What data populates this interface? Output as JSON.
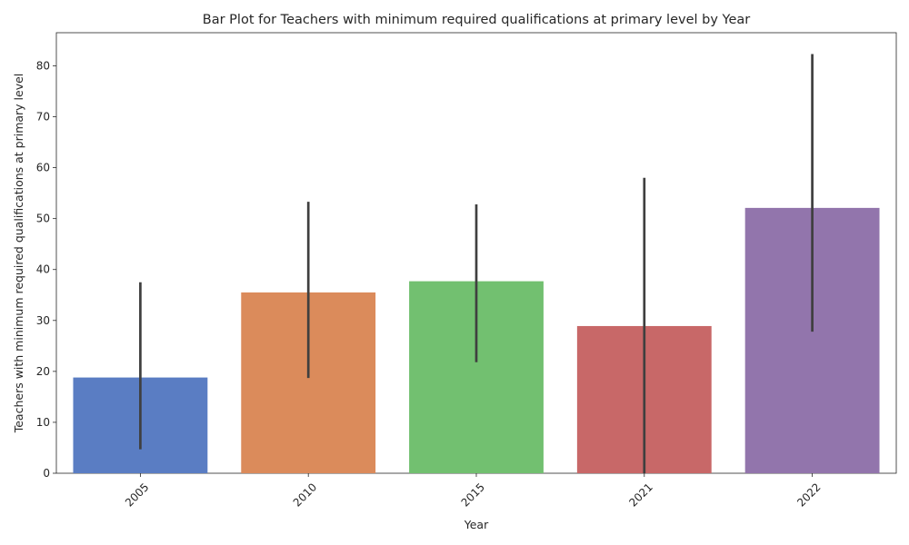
{
  "chart_data": {
    "type": "bar",
    "title": "Bar Plot for Teachers with minimum required qualifications at primary level by Year",
    "xlabel": "Year",
    "ylabel": "Teachers with minimum required qualifications at primary level",
    "categories": [
      "2005",
      "2010",
      "2015",
      "2021",
      "2022"
    ],
    "values": [
      18.8,
      35.5,
      37.7,
      28.9,
      52.1
    ],
    "error_low": [
      4.7,
      18.7,
      21.8,
      0,
      27.8
    ],
    "error_high": [
      37.5,
      53.3,
      52.8,
      58.0,
      82.3
    ],
    "colors": [
      "#5a7dc3",
      "#db8b5b",
      "#72c070",
      "#c86868",
      "#9275ac"
    ],
    "ylim": [
      0,
      86.5
    ],
    "yticks": [
      0,
      10,
      20,
      30,
      40,
      50,
      60,
      70,
      80
    ],
    "grid": false,
    "legend": "none"
  }
}
